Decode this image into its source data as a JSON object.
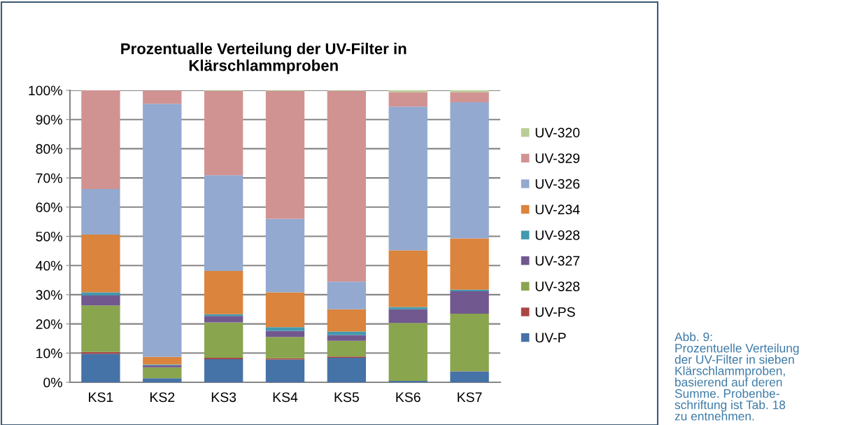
{
  "chart_data": {
    "type": "bar",
    "stacked": true,
    "title": "Prozentualle Verteilung der UV-Filter in\nKlärschlammproben",
    "categories": [
      "KS1",
      "KS2",
      "KS3",
      "KS4",
      "KS5",
      "KS6",
      "KS7"
    ],
    "series": [
      {
        "name": "UV-P",
        "color": "#4572a7",
        "values": [
          9.8,
          1.4,
          7.9,
          7.8,
          8.4,
          0.5,
          3.7
        ]
      },
      {
        "name": "UV-PS",
        "color": "#aa4643",
        "values": [
          0.6,
          null,
          0.5,
          0.4,
          0.4,
          0.0,
          0.1
        ]
      },
      {
        "name": "UV-328",
        "color": "#89a54e",
        "values": [
          15.9,
          3.7,
          12.1,
          7.3,
          5.4,
          19.8,
          19.7
        ]
      },
      {
        "name": "UV-327",
        "color": "#71588f",
        "values": [
          3.5,
          0.7,
          2.2,
          2.1,
          2.0,
          4.7,
          7.7
        ]
      },
      {
        "name": "UV-928",
        "color": "#4198af",
        "values": [
          1.0,
          0.3,
          0.6,
          1.3,
          1.2,
          0.8,
          0.5
        ]
      },
      {
        "name": "UV-234",
        "color": "#db843d",
        "values": [
          19.8,
          2.6,
          14.8,
          11.9,
          7.6,
          19.4,
          17.6
        ]
      },
      {
        "name": "UV-326",
        "color": "#93a9cf",
        "values": [
          15.6,
          86.7,
          32.8,
          25.2,
          9.5,
          49.2,
          46.6
        ]
      },
      {
        "name": "UV-329",
        "color": "#d19392",
        "values": [
          33.8,
          4.5,
          28.9,
          43.8,
          65.3,
          5.0,
          3.5
        ]
      },
      {
        "name": "UV-320",
        "color": "#b9cd96",
        "values": [
          0.0,
          0.0,
          0.2,
          0.2,
          0.2,
          0.6,
          0.6
        ]
      }
    ],
    "ylim": [
      0,
      100
    ],
    "yticks": [
      {
        "value": 0,
        "label": "0%"
      },
      {
        "value": 10,
        "label": "10%"
      },
      {
        "value": 20,
        "label": "20%"
      },
      {
        "value": 30,
        "label": "30%"
      },
      {
        "value": 40,
        "label": "40%"
      },
      {
        "value": 50,
        "label": "50%"
      },
      {
        "value": 60,
        "label": "60%"
      },
      {
        "value": 70,
        "label": "70%"
      },
      {
        "value": 80,
        "label": "80%"
      },
      {
        "value": 90,
        "label": "90%"
      },
      {
        "value": 100,
        "label": "100%"
      }
    ],
    "grid": "y",
    "legend": "right",
    "annotations": [
      "Abb. 9:\nProzentuelle Verteilung\nder UV-Filter in sieben\nKlärschlammproben,\nbasierend auf deren\nSumme. Probenbe-\nschriftung ist Tab. 18\nzu entnehmen."
    ]
  }
}
